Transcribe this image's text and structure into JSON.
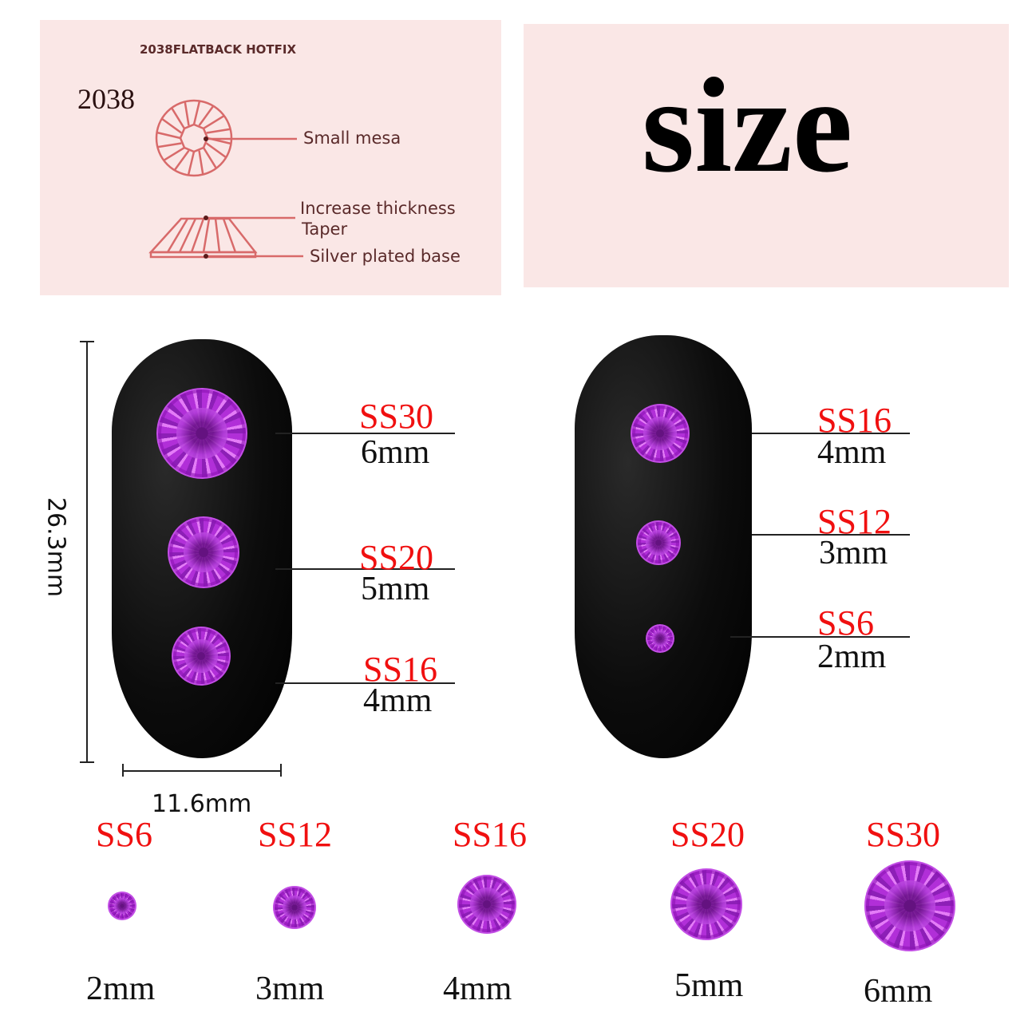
{
  "diagram": {
    "header": "2038FLATBACK HOTFIX",
    "model": "2038",
    "labels": {
      "small_mesa": "Small mesa",
      "increase_thickness": "Increase thickness",
      "taper": "Taper",
      "silver_base": "Silver plated base"
    }
  },
  "title": "size",
  "nail_dimensions": {
    "height": "26.3mm",
    "width": "11.6mm"
  },
  "nail_left": {
    "stones": [
      {
        "code": "SS30",
        "size": "6mm"
      },
      {
        "code": "SS20",
        "size": "5mm"
      },
      {
        "code": "SS16",
        "size": "4mm"
      }
    ]
  },
  "nail_right": {
    "stones": [
      {
        "code": "SS16",
        "size": "4mm"
      },
      {
        "code": "SS12",
        "size": "3mm"
      },
      {
        "code": "SS6",
        "size": "2mm"
      }
    ]
  },
  "size_row": [
    {
      "code": "SS6",
      "size": "2mm"
    },
    {
      "code": "SS12",
      "size": "3mm"
    },
    {
      "code": "SS16",
      "size": "4mm"
    },
    {
      "code": "SS20",
      "size": "5mm"
    },
    {
      "code": "SS30",
      "size": "6mm"
    }
  ],
  "colors": {
    "code_text": "#f01010",
    "panel_bg": "#fae7e6",
    "gem": "#a52ccc",
    "diagram_line": "#d86a6a"
  }
}
